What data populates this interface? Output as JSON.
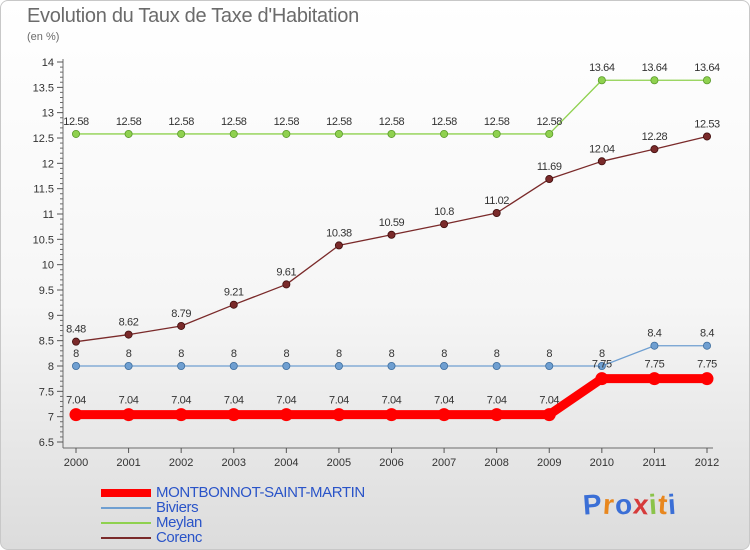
{
  "header": {
    "title": "Evolution du Taux de Taxe d'Habitation",
    "subtitle": "(en %)"
  },
  "logo": {
    "text": "Proxiti",
    "letters": [
      "P",
      "r",
      "o",
      "x",
      "i",
      "t",
      "i"
    ],
    "colors": [
      "#3b6fd6",
      "#e8871e",
      "#3b6fd6",
      "#d63b3b",
      "#8bc34a",
      "#e8871e",
      "#3b6fd6"
    ]
  },
  "chart_data": {
    "type": "line",
    "title": "Evolution du Taux de Taxe d'Habitation",
    "ylabel": "(en %)",
    "xlabel": "",
    "x": [
      "2000",
      "2001",
      "2002",
      "2003",
      "2004",
      "2005",
      "2006",
      "2007",
      "2008",
      "2009",
      "2010",
      "2011",
      "2012"
    ],
    "ylim": [
      6.5,
      14
    ],
    "yticks": [
      "6.5",
      "7",
      "7.5",
      "8",
      "8.5",
      "9",
      "9.5",
      "10",
      "10.5",
      "11",
      "11.5",
      "12",
      "12.5",
      "13",
      "13.5",
      "14"
    ],
    "grid": false,
    "legend": "bottom-left",
    "series": [
      {
        "name": "MONTBONNOT-SAINT-MARTIN",
        "color": "#ff0000",
        "labels": [
          "7.04",
          "7.04",
          "7.04",
          "7.04",
          "7.04",
          "7.04",
          "7.04",
          "7.04",
          "7.04",
          "7.04",
          "7.75",
          "7.75",
          "7.75"
        ],
        "values": [
          7.04,
          7.04,
          7.04,
          7.04,
          7.04,
          7.04,
          7.04,
          7.04,
          7.04,
          7.04,
          7.75,
          7.75,
          7.75
        ]
      },
      {
        "name": "Biviers",
        "color": "#6f9fd1",
        "labels": [
          "8",
          "8",
          "8",
          "8",
          "8",
          "8",
          "8",
          "8",
          "8",
          "8",
          "8",
          "8.4",
          "8.4"
        ],
        "values": [
          8,
          8,
          8,
          8,
          8,
          8,
          8,
          8,
          8,
          8,
          8,
          8.4,
          8.4
        ]
      },
      {
        "name": "Meylan",
        "color": "#8fd14f",
        "labels": [
          "12.58",
          "12.58",
          "12.58",
          "12.58",
          "12.58",
          "12.58",
          "12.58",
          "12.58",
          "12.58",
          "12.58",
          "13.64",
          "13.64",
          "13.64"
        ],
        "values": [
          12.58,
          12.58,
          12.58,
          12.58,
          12.58,
          12.58,
          12.58,
          12.58,
          12.58,
          12.58,
          13.64,
          13.64,
          13.64
        ]
      },
      {
        "name": "Corenc",
        "color": "#7a2a2a",
        "labels": [
          "8.48",
          "8.62",
          "8.79",
          "9.21",
          "9.61",
          "10.38",
          "10.59",
          "10.8",
          "11.02",
          "11.69",
          "12.04",
          "12.28",
          "12.53"
        ],
        "values": [
          8.48,
          8.62,
          8.79,
          9.21,
          9.61,
          10.38,
          10.59,
          10.8,
          11.02,
          11.69,
          12.04,
          12.28,
          12.53
        ]
      }
    ]
  }
}
